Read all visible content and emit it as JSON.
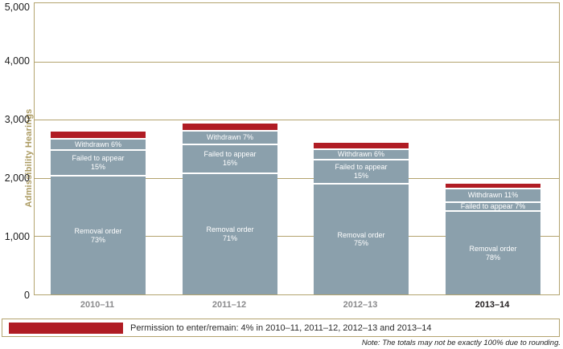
{
  "colors": {
    "gold": "#b3a36e",
    "gold_text": "#ab9a60",
    "bar_gray": "#8ba0ac",
    "bar_red": "#b01c24",
    "xlabel_gray": "#8a8a8c"
  },
  "chart_data": {
    "type": "bar",
    "subtype": "stacked",
    "title": "",
    "xlabel": "",
    "ylabel": "Admissibility Hearings",
    "ylim": [
      0,
      5000
    ],
    "grid": true,
    "yticks": [
      {
        "value": 0,
        "label": "0"
      },
      {
        "value": 1000,
        "label": "1,000"
      },
      {
        "value": 2000,
        "label": "2,000"
      },
      {
        "value": 3000,
        "label": "3,000"
      },
      {
        "value": 4000,
        "label": "4,000"
      },
      {
        "value": 5000,
        "label": "5,000"
      }
    ],
    "categories": [
      "2010–11",
      "2011–12",
      "2012–13",
      "2013–14"
    ],
    "totals_approx": [
      2800,
      2930,
      2600,
      1900
    ],
    "series": [
      {
        "name": "Removal order",
        "pct": [
          73,
          71,
          75,
          78
        ]
      },
      {
        "name": "Failed to appear",
        "pct": [
          15,
          16,
          15,
          7
        ]
      },
      {
        "name": "Withdrawn",
        "pct": [
          6,
          7,
          6,
          11
        ]
      },
      {
        "name": "Permission to enter/remain",
        "pct": [
          4,
          4,
          4,
          4
        ]
      }
    ],
    "bars": [
      {
        "category": "2010–11",
        "bold": false,
        "total": 2800,
        "segments": [
          {
            "name": "Permission to enter/remain",
            "pct": 4,
            "color": "red",
            "lines": []
          },
          {
            "name": "Withdrawn",
            "pct": 6,
            "color": "gray",
            "lines": [
              "Withdrawn 6%"
            ]
          },
          {
            "name": "Failed to appear",
            "pct": 15,
            "color": "gray",
            "lines": [
              "Failed to appear",
              "15%"
            ]
          },
          {
            "name": "Removal order",
            "pct": 73,
            "color": "gray",
            "lines": [
              "Removal order",
              "73%"
            ]
          }
        ]
      },
      {
        "category": "2011–12",
        "bold": false,
        "total": 2930,
        "segments": [
          {
            "name": "Permission to enter/remain",
            "pct": 4,
            "color": "red",
            "lines": []
          },
          {
            "name": "Withdrawn",
            "pct": 7,
            "color": "gray",
            "lines": [
              "Withdrawn 7%"
            ]
          },
          {
            "name": "Failed to appear",
            "pct": 16,
            "color": "gray",
            "lines": [
              "Failed to appear",
              "16%"
            ]
          },
          {
            "name": "Removal order",
            "pct": 71,
            "color": "gray",
            "lines": [
              "Removal order",
              "71%"
            ]
          }
        ]
      },
      {
        "category": "2012–13",
        "bold": false,
        "total": 2600,
        "segments": [
          {
            "name": "Permission to enter/remain",
            "pct": 4,
            "color": "red",
            "lines": []
          },
          {
            "name": "Withdrawn",
            "pct": 6,
            "color": "gray",
            "lines": [
              "Withdrawn 6%"
            ]
          },
          {
            "name": "Failed to appear",
            "pct": 15,
            "color": "gray",
            "lines": [
              "Failed to appear",
              "15%"
            ]
          },
          {
            "name": "Removal order",
            "pct": 75,
            "color": "gray",
            "lines": [
              "Removal order",
              "75%"
            ]
          }
        ]
      },
      {
        "category": "2013–14",
        "bold": true,
        "total": 1900,
        "segments": [
          {
            "name": "Permission to enter/remain",
            "pct": 4,
            "color": "red",
            "lines": []
          },
          {
            "name": "Withdrawn",
            "pct": 11,
            "color": "gray",
            "lines": [
              "Withdrawn 11%"
            ]
          },
          {
            "name": "Failed to appear",
            "pct": 7,
            "color": "gray",
            "lines": [
              "Failed to appear 7%"
            ]
          },
          {
            "name": "Removal order",
            "pct": 78,
            "color": "gray",
            "lines": [
              "Removal order",
              "78%"
            ]
          }
        ]
      }
    ],
    "legend_position": "bottom"
  },
  "legend": {
    "text": "Permission to enter/remain: 4% in 2010–11, 2011–12, 2012–13 and 2013–14"
  },
  "note": "Note: The totals may not be exactly 100% due to rounding."
}
